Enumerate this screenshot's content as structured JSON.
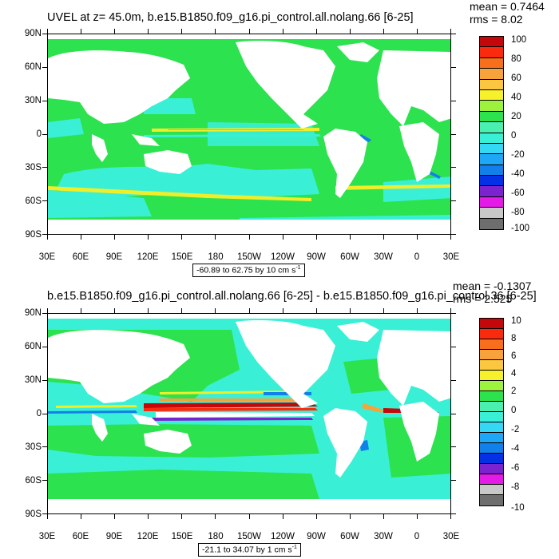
{
  "colors": {
    "ocean_base": "#2de24f",
    "ocean_cyan": "#39f0d6",
    "band_yellow": "#f0ee2a",
    "band_orange": "#f7a23a",
    "band_red": "#c4070b",
    "band_blue": "#1180ea",
    "land": "#ffffff"
  },
  "colorbar_colors": [
    "#c4070b",
    "#fa2a0f",
    "#f76f1c",
    "#f7a23a",
    "#fbc740",
    "#f6f12a",
    "#9cf23d",
    "#2de24f",
    "#4af0b0",
    "#39f0d6",
    "#35d8f4",
    "#1ea7f7",
    "#1180ea",
    "#0531e6",
    "#7a23cf",
    "#e41ae6",
    "#c8c8c8",
    "#6e6e6e"
  ],
  "top": {
    "title": "UVEL at z=  45.0m, b.e15.B1850.f09_g16.pi_control.all.nolang.66 [6-25]",
    "mean": "mean = 0.7464",
    "rms": "rms = 8.02",
    "range_label": "-60.89 to 62.75 by 10 cm s",
    "range_sup": "-1",
    "colorbar_labels": [
      "100",
      "80",
      "60",
      "40",
      "20",
      "0",
      "-20",
      "-40",
      "-60",
      "-80",
      "-100"
    ]
  },
  "bottom": {
    "title": "b.e15.B1850.f09_g16.pi_control.all.nolang.66 [6-25] - b.e15.B1850.f09_g16.pi_control.36 [6-25]",
    "mean": "mean = -0.1307",
    "rms": "rms = 2.525",
    "range_label": "-21.1 to 34.07 by 1 cm s",
    "range_sup": "-1",
    "colorbar_labels": [
      "10",
      "8",
      "6",
      "4",
      "2",
      "0",
      "-2",
      "-4",
      "-6",
      "-8",
      "-10"
    ]
  },
  "lat_labels": [
    "90N",
    "60N",
    "30N",
    "0",
    "30S",
    "60S",
    "90S"
  ],
  "lon_labels": [
    "30E",
    "60E",
    "90E",
    "120E",
    "150E",
    "180",
    "150W",
    "120W",
    "90W",
    "60W",
    "30W",
    "0",
    "30E"
  ]
}
